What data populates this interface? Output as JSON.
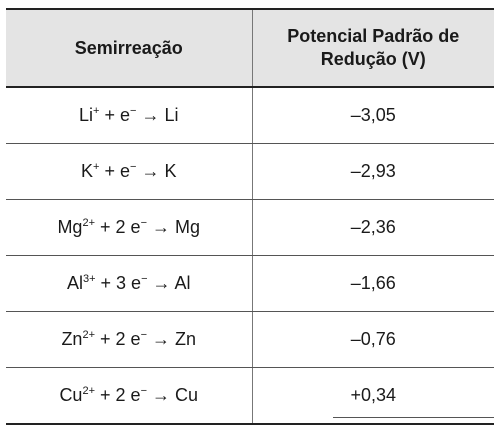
{
  "table": {
    "headers": {
      "reaction": "Semirreação",
      "potential_line1": "Potencial Padrão de",
      "potential_line2": "Redução (V)"
    },
    "rows": [
      {
        "ion": "Li",
        "ion_charge": "+",
        "coeff": "",
        "electron": "e",
        "electron_charge": "−",
        "arrow": "→",
        "product": "Li",
        "potential": "–3,05"
      },
      {
        "ion": "K",
        "ion_charge": "+",
        "coeff": "",
        "electron": "e",
        "electron_charge": "−",
        "arrow": "→",
        "product": "K",
        "potential": "–2,93"
      },
      {
        "ion": "Mg",
        "ion_charge": "2+",
        "coeff": "2",
        "electron": "e",
        "electron_charge": "−",
        "arrow": "→",
        "product": "Mg",
        "potential": "–2,36"
      },
      {
        "ion": "Al",
        "ion_charge": "3+",
        "coeff": "3",
        "electron": "e",
        "electron_charge": "−",
        "arrow": "→",
        "product": "Al",
        "potential": "–1,66"
      },
      {
        "ion": "Zn",
        "ion_charge": "2+",
        "coeff": "2",
        "electron": "e",
        "electron_charge": "−",
        "arrow": "→",
        "product": "Zn",
        "potential": "–0,76"
      },
      {
        "ion": "Cu",
        "ion_charge": "2+",
        "coeff": "2",
        "electron": "e",
        "electron_charge": "−",
        "arrow": "→",
        "product": "Cu",
        "potential": "+0,34"
      }
    ]
  }
}
